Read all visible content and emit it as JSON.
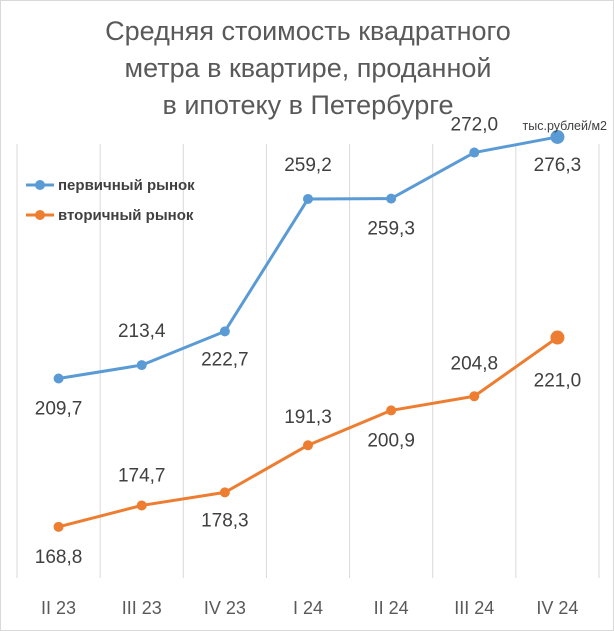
{
  "chart_data": {
    "type": "line",
    "title": [
      "Средняя стоимость квадратного",
      "метра в квартире, проданной",
      "в ипотеку в Петербурге"
    ],
    "unit": "тыс.рублей/м2",
    "categories": [
      "II 23",
      "III  23",
      "IV 23",
      "I   24",
      "II 24",
      "III  24",
      "IV 24"
    ],
    "series": [
      {
        "name": "первичный рынок",
        "color": "#5b9bd5",
        "values": [
          209.7,
          213.4,
          222.7,
          259.2,
          259.3,
          272.0,
          276.3
        ],
        "labels": [
          "209,7",
          "213,4",
          "222,7",
          "259,2",
          "259,3",
          "272,0",
          "276,3"
        ]
      },
      {
        "name": "вторичный рынок",
        "color": "#ed7d31",
        "values": [
          168.8,
          174.7,
          178.3,
          191.3,
          200.9,
          204.8,
          221.0
        ],
        "labels": [
          "168,8",
          "174,7",
          "178,3",
          "191,3",
          "200,9",
          "204,8",
          "221,0"
        ]
      }
    ],
    "grid": "vertical",
    "legend": "top-left"
  }
}
